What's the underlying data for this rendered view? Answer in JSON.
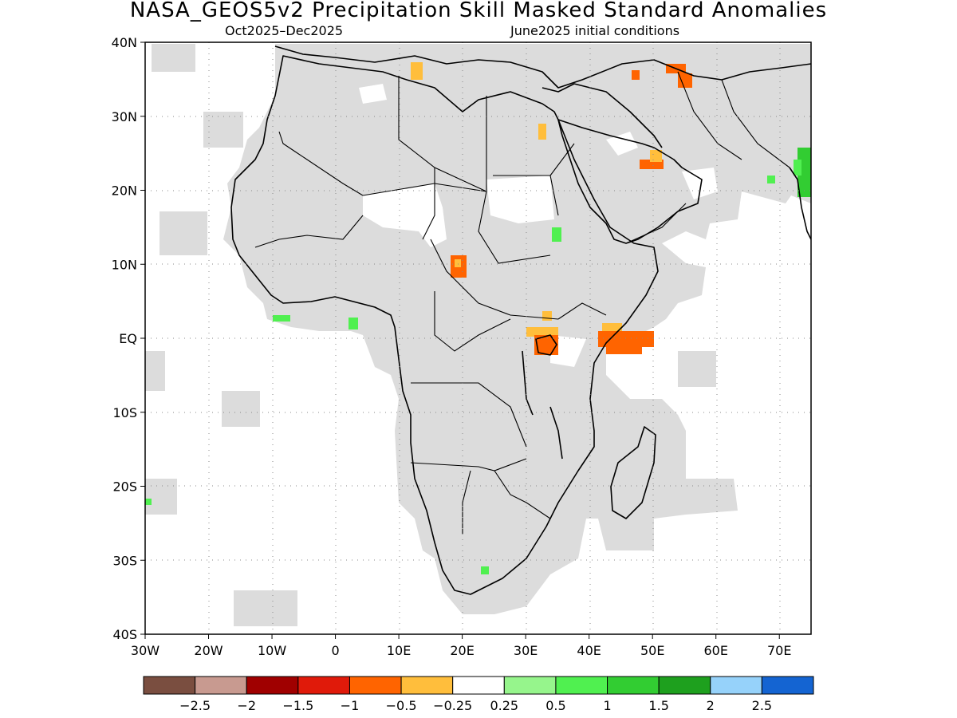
{
  "title": "NASA_GEOS5v2 Precipitation Skill Masked Standard Anomalies",
  "subtitle_left": "Oct2025–Dec2025",
  "subtitle_right": "June2025 initial conditions",
  "map": {
    "lon_range": [
      -30,
      75
    ],
    "lat_range": [
      -40,
      40
    ],
    "lon_ticks": [
      "30W",
      "20W",
      "10W",
      "0",
      "10E",
      "20E",
      "30E",
      "40E",
      "50E",
      "60E",
      "70E"
    ],
    "lat_ticks": [
      "40N",
      "30N",
      "20N",
      "10N",
      "EQ",
      "10S",
      "20S",
      "30S",
      "40S"
    ],
    "grid": "dotted",
    "mask_color": "#dcdcdc",
    "coastline_color": "#000000"
  },
  "colorbar": {
    "colors": [
      "#7a4e40",
      "#c89a90",
      "#a00000",
      "#e01a0a",
      "#ff6400",
      "#ffbe3c",
      "#ffffff",
      "#96f58c",
      "#50f050",
      "#32cd32",
      "#1ea01e",
      "#96d2fa",
      "#1464d2"
    ],
    "labels": [
      "−2.5",
      "−2",
      "−1.5",
      "−1",
      "−0.5",
      "−0.25",
      "0.25",
      "0.5",
      "1",
      "1.5",
      "2",
      "2.5"
    ]
  }
}
